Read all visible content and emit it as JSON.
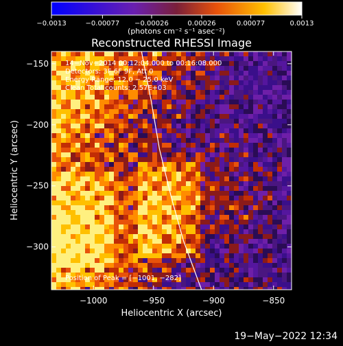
{
  "chart_data": {
    "type": "heatmap",
    "title": "Reconstructed RHESSI Image",
    "xlabel": "Heliocentric X (arcsec)",
    "ylabel": "Heliocentric Y (arcsec)",
    "xlim": [
      -1035,
      -835
    ],
    "ylim": [
      -335,
      -140
    ],
    "x_ticks": [
      -1000,
      -950,
      -900,
      -850
    ],
    "x_tick_labels": [
      "−1000",
      "−950",
      "−900",
      "−850"
    ],
    "y_ticks": [
      -150,
      -200,
      -250,
      -300
    ],
    "y_tick_labels": [
      "−150",
      "−200",
      "−250",
      "−300"
    ],
    "colorbar": {
      "range": [
        -0.0013,
        0.0013
      ],
      "ticks": [
        -0.0013,
        -0.00077,
        -0.00026,
        0.00026,
        0.00077,
        0.0013
      ],
      "tick_labels": [
        "−0.0013",
        "−0.00077",
        "−0.00026",
        "0.00026",
        "0.00077",
        "0.0013"
      ],
      "units": "(photons cm⁻² s⁻¹ asec⁻²)",
      "colors": [
        "#0000ff",
        "#6a1fb0",
        "#8c2a3a",
        "#e8520a",
        "#ffd000",
        "#ffffff"
      ]
    },
    "annotations": [
      "14−Nov−2014 00:12:04.000 to 00:16:08.000",
      "Detectors: 3F 6F 9F, Att 0",
      "Energy Range: 12.0 − 25.0 keV",
      "Clean     Total counts: 2.57E+03"
    ],
    "peak_label": "Position of Peak = [−1001, −282]",
    "peak": [
      -1001,
      -282
    ],
    "limb": [
      [
        -960,
        -140
      ],
      [
        -952,
        -180
      ],
      [
        -945,
        -220
      ],
      [
        -935,
        -260
      ],
      [
        -925,
        -295
      ],
      [
        -910,
        -335
      ]
    ]
  },
  "footer": {
    "timestamp": "19−May−2022 12:34"
  }
}
